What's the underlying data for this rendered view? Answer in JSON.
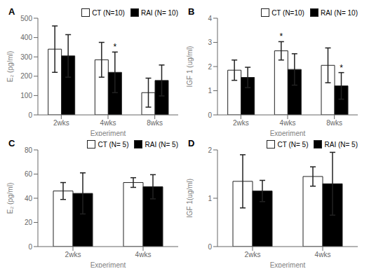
{
  "chart_data": [
    {
      "type": "bar",
      "title": "A",
      "x_label": "Experiment",
      "y_label": "E₂ (pg/ml)",
      "categories": [
        "2wks",
        "4wks",
        "8wks"
      ],
      "series": [
        {
          "name": "CT (N=10)",
          "color": "white",
          "values": [
            340,
            285,
            115
          ],
          "errors": [
            120,
            90,
            75
          ]
        },
        {
          "name": "RAI (N= 10)",
          "color": "black",
          "values": [
            305,
            220,
            178
          ],
          "errors": [
            110,
            105,
            80
          ]
        }
      ],
      "annotations": [
        {
          "text": "*",
          "series": "RAI (N= 10)",
          "category": "4wks"
        }
      ],
      "ylim": [
        0,
        500
      ],
      "yticks": [
        0,
        100,
        200,
        300,
        400,
        500
      ],
      "legend": "upper right"
    },
    {
      "type": "bar",
      "title": "B",
      "x_label": "Experiment",
      "y_label": "IGF 1 (ug/ml)",
      "categories": [
        "2wks",
        "4wks",
        "8wks"
      ],
      "series": [
        {
          "name": "CT (N=10)",
          "color": "white",
          "values": [
            1.85,
            2.65,
            2.05
          ],
          "errors": [
            0.42,
            0.38,
            0.72
          ]
        },
        {
          "name": "RAI (N= 10)",
          "color": "black",
          "values": [
            1.55,
            1.88,
            1.2
          ],
          "errors": [
            0.42,
            0.65,
            0.55
          ]
        }
      ],
      "annotations": [
        {
          "text": "*",
          "series": "CT (N=10)",
          "category": "4wks"
        },
        {
          "text": "*",
          "series": "RAI (N= 10)",
          "category": "8wks"
        }
      ],
      "ylim": [
        0,
        4
      ],
      "yticks": [
        0,
        1,
        2,
        3,
        4
      ],
      "legend": "upper right"
    },
    {
      "type": "bar",
      "title": "C",
      "x_label": "Experiment",
      "y_label": "E₂ (pg/ml)",
      "categories": [
        "2wks",
        "4wks"
      ],
      "series": [
        {
          "name": "CT (N= 5)",
          "color": "white",
          "values": [
            46,
            53
          ],
          "errors": [
            7,
            4
          ]
        },
        {
          "name": "RAI (N= 5)",
          "color": "black",
          "values": [
            44,
            49.5
          ],
          "errors": [
            17,
            10
          ]
        }
      ],
      "ylim": [
        0,
        80
      ],
      "yticks": [
        0,
        20,
        40,
        60,
        80
      ],
      "legend": "upper right"
    },
    {
      "type": "bar",
      "title": "D",
      "x_label": "Experiment",
      "y_label": "IGF 1(ug/ml)",
      "categories": [
        "2wks",
        "4wks"
      ],
      "series": [
        {
          "name": "CT (N= 5)",
          "color": "white",
          "values": [
            1.35,
            1.45
          ],
          "errors": [
            0.55,
            0.2
          ]
        },
        {
          "name": "RAI (N= 5)",
          "color": "black",
          "values": [
            1.15,
            1.3
          ],
          "errors": [
            0.22,
            0.65
          ]
        }
      ],
      "ylim": [
        0,
        2
      ],
      "yticks": [
        0,
        1,
        2
      ],
      "legend": "upper right"
    }
  ]
}
